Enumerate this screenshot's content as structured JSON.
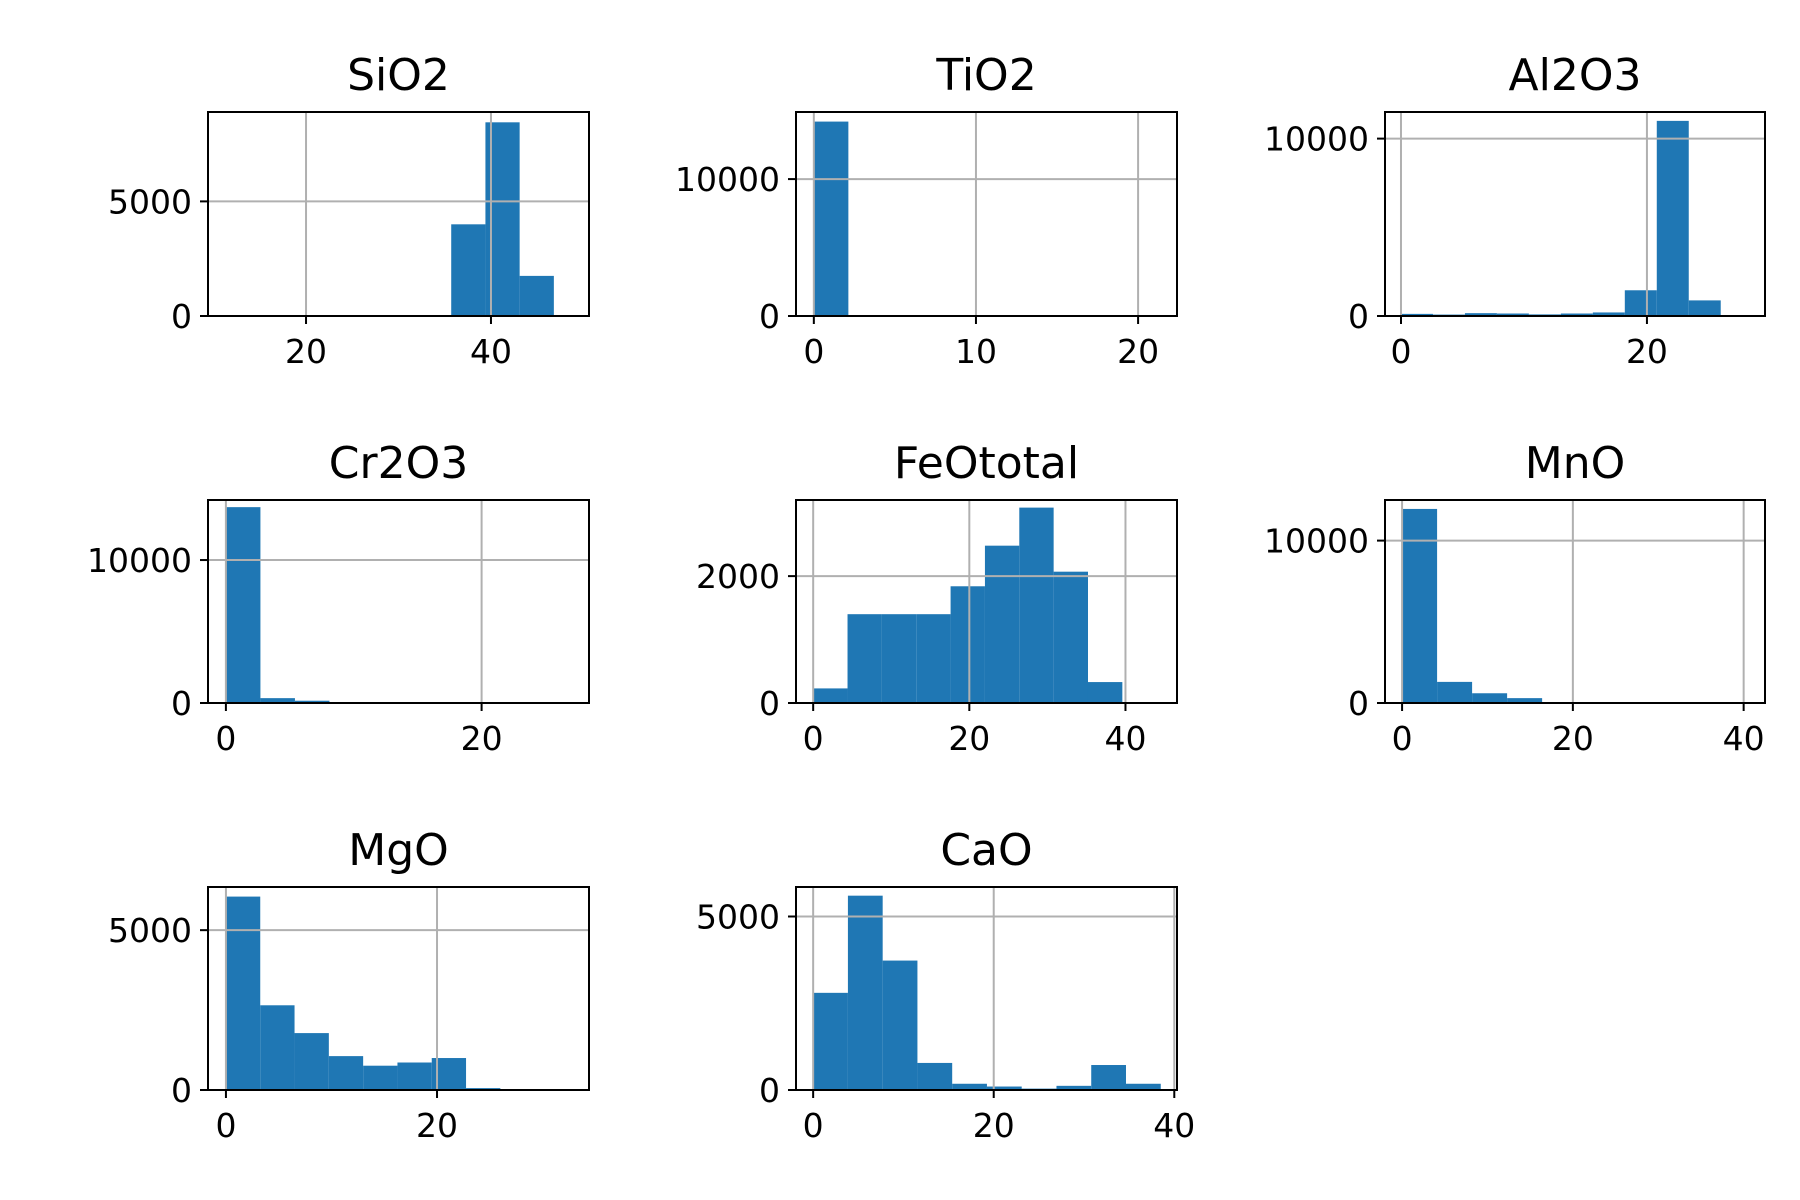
{
  "chart_data": [
    {
      "type": "bar",
      "title": "SiO2",
      "xlim": [
        9.4,
        50.6
      ],
      "ylim": [
        0,
        8900
      ],
      "xticks": [
        20,
        40
      ],
      "yticks": [
        0,
        5000
      ],
      "bins": [
        {
          "x0": 13.5,
          "x1": 17.2,
          "count": 0
        },
        {
          "x0": 17.2,
          "x1": 20.9,
          "count": 0
        },
        {
          "x0": 20.9,
          "x1": 24.6,
          "count": 0
        },
        {
          "x0": 24.6,
          "x1": 28.3,
          "count": 0
        },
        {
          "x0": 28.3,
          "x1": 32.0,
          "count": 0
        },
        {
          "x0": 32.0,
          "x1": 35.7,
          "count": 0
        },
        {
          "x0": 35.7,
          "x1": 39.4,
          "count": 4000
        },
        {
          "x0": 39.4,
          "x1": 43.1,
          "count": 8450
        },
        {
          "x0": 43.1,
          "x1": 46.8,
          "count": 1750
        }
      ]
    },
    {
      "type": "bar",
      "title": "TiO2",
      "xlim": [
        -1.1,
        22.4
      ],
      "ylim": [
        0,
        14900
      ],
      "xticks": [
        0,
        10,
        20
      ],
      "yticks": [
        0,
        10000
      ],
      "bins": [
        {
          "x0": 0,
          "x1": 2.13,
          "count": 14200
        }
      ]
    },
    {
      "type": "bar",
      "title": "Al2O3",
      "xlim": [
        -1.3,
        29.6
      ],
      "ylim": [
        0,
        11500
      ],
      "xticks": [
        0,
        20
      ],
      "yticks": [
        0,
        10000
      ],
      "bins": [
        {
          "x0": 0,
          "x1": 2.6,
          "count": 120
        },
        {
          "x0": 2.6,
          "x1": 5.2,
          "count": 80
        },
        {
          "x0": 5.2,
          "x1": 7.8,
          "count": 160
        },
        {
          "x0": 7.8,
          "x1": 10.4,
          "count": 140
        },
        {
          "x0": 10.4,
          "x1": 13.0,
          "count": 90
        },
        {
          "x0": 13.0,
          "x1": 15.6,
          "count": 140
        },
        {
          "x0": 15.6,
          "x1": 18.2,
          "count": 200
        },
        {
          "x0": 18.2,
          "x1": 20.8,
          "count": 1450
        },
        {
          "x0": 20.8,
          "x1": 23.4,
          "count": 11000
        },
        {
          "x0": 23.4,
          "x1": 26.0,
          "count": 880
        }
      ]
    },
    {
      "type": "bar",
      "title": "Cr2O3",
      "xlim": [
        -1.4,
        28.4
      ],
      "ylim": [
        0,
        14200
      ],
      "xticks": [
        0,
        20
      ],
      "yticks": [
        0,
        10000
      ],
      "bins": [
        {
          "x0": 0,
          "x1": 2.7,
          "count": 13700
        },
        {
          "x0": 2.7,
          "x1": 5.4,
          "count": 340
        },
        {
          "x0": 5.4,
          "x1": 8.1,
          "count": 160
        }
      ]
    },
    {
      "type": "bar",
      "title": "FeOtotal",
      "xlim": [
        -2.2,
        46.6
      ],
      "ylim": [
        0,
        3200
      ],
      "xticks": [
        0,
        20,
        40
      ],
      "yticks": [
        0,
        2000
      ],
      "bins": [
        {
          "x0": 0,
          "x1": 4.4,
          "count": 230
        },
        {
          "x0": 4.4,
          "x1": 8.8,
          "count": 1400
        },
        {
          "x0": 8.8,
          "x1": 13.2,
          "count": 1400
        },
        {
          "x0": 13.2,
          "x1": 17.6,
          "count": 1400
        },
        {
          "x0": 17.6,
          "x1": 22.0,
          "count": 1840
        },
        {
          "x0": 22.0,
          "x1": 26.4,
          "count": 2480
        },
        {
          "x0": 26.4,
          "x1": 30.8,
          "count": 3080
        },
        {
          "x0": 30.8,
          "x1": 35.2,
          "count": 2070
        },
        {
          "x0": 35.2,
          "x1": 39.6,
          "count": 330
        }
      ]
    },
    {
      "type": "bar",
      "title": "MnO",
      "xlim": [
        -2.0,
        42.5
      ],
      "ylim": [
        0,
        12500
      ],
      "xticks": [
        0,
        20,
        40
      ],
      "yticks": [
        0,
        10000
      ],
      "bins": [
        {
          "x0": 0,
          "x1": 4.1,
          "count": 11950
        },
        {
          "x0": 4.1,
          "x1": 8.2,
          "count": 1300
        },
        {
          "x0": 8.2,
          "x1": 12.3,
          "count": 600
        },
        {
          "x0": 12.3,
          "x1": 16.4,
          "count": 300
        },
        {
          "x0": 16.4,
          "x1": 20.5,
          "count": 30
        }
      ]
    },
    {
      "type": "bar",
      "title": "MgO",
      "xlim": [
        -1.7,
        34.4
      ],
      "ylim": [
        0,
        6350
      ],
      "xticks": [
        0,
        20
      ],
      "yticks": [
        0,
        5000
      ],
      "bins": [
        {
          "x0": 0,
          "x1": 3.25,
          "count": 6050
        },
        {
          "x0": 3.25,
          "x1": 6.5,
          "count": 2650
        },
        {
          "x0": 6.5,
          "x1": 9.75,
          "count": 1780
        },
        {
          "x0": 9.75,
          "x1": 13.0,
          "count": 1060
        },
        {
          "x0": 13.0,
          "x1": 16.25,
          "count": 760
        },
        {
          "x0": 16.25,
          "x1": 19.5,
          "count": 860
        },
        {
          "x0": 19.5,
          "x1": 22.75,
          "count": 1000
        },
        {
          "x0": 22.75,
          "x1": 26.0,
          "count": 60
        }
      ]
    },
    {
      "type": "bar",
      "title": "CaO",
      "xlim": [
        -1.9,
        40.3
      ],
      "ylim": [
        0,
        5850
      ],
      "xticks": [
        0,
        20,
        40
      ],
      "yticks": [
        0,
        5000
      ],
      "bins": [
        {
          "x0": 0,
          "x1": 3.85,
          "count": 2800
        },
        {
          "x0": 3.85,
          "x1": 7.7,
          "count": 5600
        },
        {
          "x0": 7.7,
          "x1": 11.55,
          "count": 3730
        },
        {
          "x0": 11.55,
          "x1": 15.4,
          "count": 780
        },
        {
          "x0": 15.4,
          "x1": 19.25,
          "count": 180
        },
        {
          "x0": 19.25,
          "x1": 23.1,
          "count": 100
        },
        {
          "x0": 23.1,
          "x1": 26.95,
          "count": 40
        },
        {
          "x0": 26.95,
          "x1": 30.8,
          "count": 120
        },
        {
          "x0": 30.8,
          "x1": 34.65,
          "count": 720
        },
        {
          "x0": 34.65,
          "x1": 38.5,
          "count": 180
        }
      ]
    }
  ],
  "style": {
    "bar_color": "#1f77b4",
    "grid": true
  }
}
